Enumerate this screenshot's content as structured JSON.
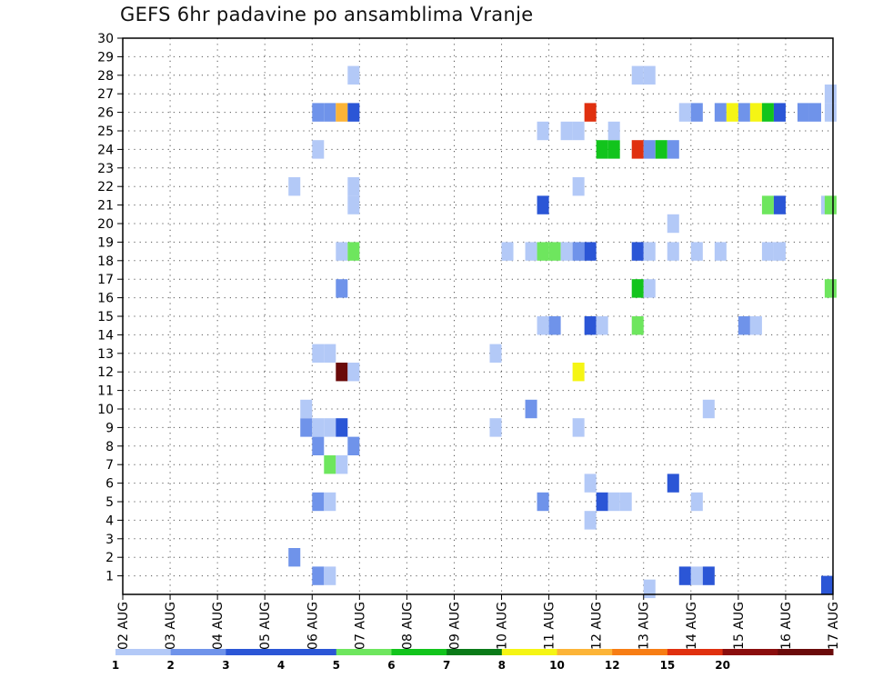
{
  "chart_data": {
    "type": "heatmap",
    "title": "GEFS 6hr padavine po ansamblima Vranje",
    "xlabel": "",
    "ylabel": "",
    "x_ticks": [
      "02 AUG",
      "03 AUG",
      "04 AUG",
      "05 AUG",
      "06 AUG",
      "07 AUG",
      "08 AUG",
      "09 AUG",
      "10 AUG",
      "11 AUG",
      "12 AUG",
      "13 AUG",
      "14 AUG",
      "15 AUG",
      "16 AUG",
      "17 AUG"
    ],
    "y_ticks": [
      "1",
      "2",
      "3",
      "4",
      "5",
      "6",
      "7",
      "8",
      "9",
      "10",
      "11",
      "12",
      "13",
      "14",
      "15",
      "16",
      "17",
      "18",
      "19",
      "20",
      "21",
      "22",
      "23",
      "24",
      "25",
      "26",
      "27",
      "28",
      "29",
      "30"
    ],
    "xlim": [
      0,
      60
    ],
    "ylim": [
      0,
      30
    ],
    "x_unit": "6-hour steps from 02 AUG 00UTC",
    "grid": true,
    "colorbar": {
      "labels": [
        "1",
        "2",
        "3",
        "4",
        "5",
        "6",
        "7",
        "8",
        "10",
        "12",
        "15",
        "20"
      ],
      "colors": [
        "#b3c9f7",
        "#6f93ea",
        "#2b56d6",
        "#2b56d6",
        "#6ee65e",
        "#12c41c",
        "#0a7a18",
        "#f5f514",
        "#fcb437",
        "#f77d14",
        "#e0300f",
        "#8a0d0d",
        "#6a0a0a"
      ]
    },
    "cells": [
      [
        16.5,
        1,
        2
      ],
      [
        17.5,
        1,
        1
      ],
      [
        47.5,
        1,
        3
      ],
      [
        48.5,
        1,
        1
      ],
      [
        49.5,
        1,
        3
      ],
      [
        59.5,
        0.5,
        3
      ],
      [
        44.5,
        0.3,
        1
      ],
      [
        14.5,
        2,
        2
      ],
      [
        16.5,
        5,
        2
      ],
      [
        17.5,
        5,
        1
      ],
      [
        35.5,
        5,
        2
      ],
      [
        40.5,
        5,
        3
      ],
      [
        41.5,
        5,
        1
      ],
      [
        42.5,
        5,
        1
      ],
      [
        48.5,
        5,
        1
      ],
      [
        39.5,
        4,
        1
      ],
      [
        39.5,
        6,
        1
      ],
      [
        46.5,
        6,
        3
      ],
      [
        17.5,
        7,
        5
      ],
      [
        18.5,
        7,
        1
      ],
      [
        16.5,
        8,
        2
      ],
      [
        19.5,
        8,
        2
      ],
      [
        15.5,
        9,
        2
      ],
      [
        16.5,
        9,
        1
      ],
      [
        17.5,
        9,
        1
      ],
      [
        18.5,
        9,
        3
      ],
      [
        31.5,
        9,
        1
      ],
      [
        38.5,
        9,
        1
      ],
      [
        15.5,
        10,
        1
      ],
      [
        34.5,
        10,
        2
      ],
      [
        49.5,
        10,
        1
      ],
      [
        18.5,
        12,
        20
      ],
      [
        19.5,
        12,
        1
      ],
      [
        38.5,
        12,
        8
      ],
      [
        16.5,
        13,
        1
      ],
      [
        17.5,
        13,
        1
      ],
      [
        31.5,
        13,
        1
      ],
      [
        35.5,
        14.5,
        1
      ],
      [
        36.5,
        14.5,
        2
      ],
      [
        39.5,
        14.5,
        3
      ],
      [
        40.5,
        14.5,
        1
      ],
      [
        43.5,
        14.5,
        5
      ],
      [
        52.5,
        14.5,
        2
      ],
      [
        53.5,
        14.5,
        1
      ],
      [
        18.5,
        16.5,
        2
      ],
      [
        43.5,
        16.5,
        6
      ],
      [
        44.5,
        16.5,
        1
      ],
      [
        59.8,
        16.5,
        5
      ],
      [
        18.5,
        18.5,
        1
      ],
      [
        19.5,
        18.5,
        5
      ],
      [
        32.5,
        18.5,
        1
      ],
      [
        34.5,
        18.5,
        1
      ],
      [
        35.5,
        18.5,
        5
      ],
      [
        36.5,
        18.5,
        5
      ],
      [
        37.5,
        18.5,
        1
      ],
      [
        38.5,
        18.5,
        2
      ],
      [
        39.5,
        18.5,
        3
      ],
      [
        43.5,
        18.5,
        3
      ],
      [
        44.5,
        18.5,
        1
      ],
      [
        46.5,
        18.5,
        1
      ],
      [
        48.5,
        18.5,
        1
      ],
      [
        50.5,
        18.5,
        1
      ],
      [
        54.5,
        18.5,
        1
      ],
      [
        55.5,
        18.5,
        1
      ],
      [
        46.5,
        20,
        1
      ],
      [
        19.5,
        21,
        1
      ],
      [
        35.5,
        21,
        3
      ],
      [
        54.5,
        21,
        5
      ],
      [
        55.5,
        21,
        3
      ],
      [
        59.5,
        21,
        1
      ],
      [
        59.8,
        21,
        5
      ],
      [
        14.5,
        22,
        1
      ],
      [
        19.5,
        22,
        1
      ],
      [
        38.5,
        22,
        1
      ],
      [
        16.5,
        24,
        1
      ],
      [
        40.5,
        24,
        6
      ],
      [
        41.5,
        24,
        6
      ],
      [
        43.5,
        24,
        15
      ],
      [
        44.5,
        24,
        2
      ],
      [
        45.5,
        24,
        6
      ],
      [
        46.5,
        24,
        2
      ],
      [
        35.5,
        25,
        1
      ],
      [
        37.5,
        25,
        1
      ],
      [
        38.5,
        25,
        1
      ],
      [
        41.5,
        25,
        1
      ],
      [
        16.5,
        26,
        2
      ],
      [
        17.5,
        26,
        2
      ],
      [
        18.5,
        26,
        10
      ],
      [
        19.5,
        26,
        3
      ],
      [
        39.5,
        26,
        15
      ],
      [
        47.5,
        26,
        1
      ],
      [
        48.5,
        26,
        2
      ],
      [
        50.5,
        26,
        2
      ],
      [
        51.5,
        26,
        8
      ],
      [
        52.5,
        26,
        2
      ],
      [
        53.5,
        26,
        8
      ],
      [
        54.5,
        26,
        6
      ],
      [
        55.5,
        26,
        3
      ],
      [
        57.5,
        26,
        2
      ],
      [
        58.5,
        26,
        2
      ],
      [
        59.8,
        26,
        1
      ],
      [
        59.8,
        27,
        1
      ],
      [
        19.5,
        28,
        1
      ],
      [
        43.5,
        28,
        1
      ],
      [
        44.5,
        28,
        1
      ]
    ]
  }
}
